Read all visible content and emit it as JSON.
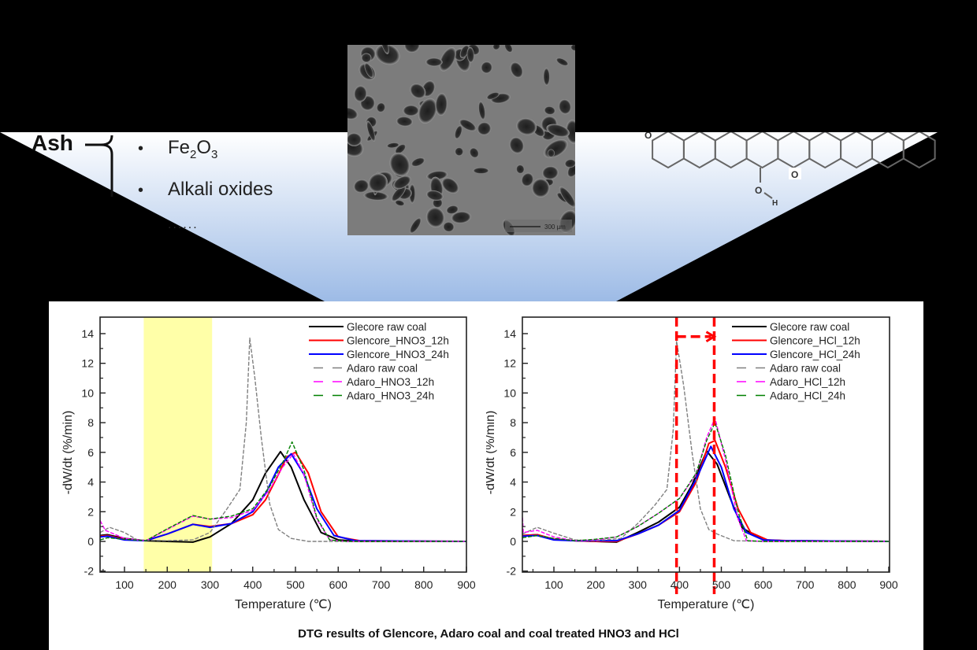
{
  "top_section": {
    "ash_label": "Ash",
    "ash_items": [
      "Fe2O3",
      "Alkali oxides",
      "......"
    ],
    "sem_image": {
      "alt": "porous char SEM micrograph",
      "scale_bar": "300 µm"
    },
    "molecule": {
      "alt": "coal macromolecular structure",
      "atom_labels": [
        "O",
        "O",
        "H"
      ]
    },
    "gradient_colors": [
      "#ffffff",
      "#9dbbe6"
    ]
  },
  "caption": "DTG results of Glencore, Adaro coal and coal treated HNO3 and HCl",
  "chart_data": [
    {
      "type": "line",
      "title": "",
      "xlabel": "Temperature (℃)",
      "ylabel": "-dW/dt (%/min)",
      "xlim": [
        43,
        900
      ],
      "ylim": [
        -2,
        15
      ],
      "xticks": [
        100,
        200,
        300,
        400,
        500,
        600,
        700,
        800,
        900
      ],
      "yticks": [
        -2,
        0,
        2,
        4,
        6,
        8,
        10,
        12,
        14
      ],
      "legend_position": "upper right",
      "grid": false,
      "annotations": [
        {
          "type": "highlight_band",
          "x_range": [
            145,
            305
          ],
          "color": "#ffff99"
        }
      ],
      "series": [
        {
          "name": "Glecore raw coal",
          "color": "#000000",
          "dash": "solid",
          "x": [
            43,
            60,
            100,
            150,
            200,
            260,
            300,
            350,
            400,
            430,
            465,
            490,
            520,
            560,
            600,
            650,
            900
          ],
          "y": [
            0.4,
            0.45,
            0.2,
            0.05,
            0.0,
            -0.05,
            0.3,
            1.2,
            2.8,
            4.6,
            6.05,
            5.0,
            2.8,
            0.6,
            0.1,
            0.0,
            0.0
          ]
        },
        {
          "name": "Glencore_HNO3_12h",
          "color": "#ff0000",
          "dash": "solid",
          "x": [
            43,
            60,
            100,
            150,
            200,
            260,
            300,
            350,
            400,
            430,
            460,
            480,
            500,
            530,
            560,
            600,
            650,
            900
          ],
          "y": [
            0.35,
            0.4,
            0.15,
            0.05,
            0.5,
            1.15,
            1.0,
            1.2,
            1.8,
            2.8,
            4.5,
            5.7,
            6.0,
            4.6,
            2.0,
            0.3,
            0.05,
            0.0
          ]
        },
        {
          "name": "Glencore_HNO3_24h",
          "color": "#0000ff",
          "dash": "solid",
          "x": [
            43,
            60,
            100,
            150,
            200,
            260,
            300,
            350,
            400,
            430,
            460,
            490,
            520,
            550,
            590,
            640,
            900
          ],
          "y": [
            0.3,
            0.35,
            0.1,
            0.05,
            0.5,
            1.15,
            0.95,
            1.2,
            2.0,
            3.2,
            5.0,
            5.9,
            4.5,
            2.2,
            0.4,
            0.05,
            0.0
          ]
        },
        {
          "name": "Adaro raw coal",
          "color": "#808080",
          "dash": "dashed",
          "x": [
            43,
            65,
            100,
            130,
            200,
            260,
            300,
            340,
            370,
            385,
            393,
            405,
            420,
            440,
            460,
            490,
            530,
            600,
            900
          ],
          "y": [
            0.6,
            0.95,
            0.6,
            0.1,
            0.05,
            0.1,
            0.6,
            2.2,
            3.5,
            8.0,
            13.7,
            11.0,
            7.0,
            2.5,
            0.8,
            0.2,
            0.0,
            0.0,
            0.0
          ]
        },
        {
          "name": "Adaro_HNO3_12h",
          "color": "#ff00ff",
          "dash": "dashed",
          "x": [
            43,
            55,
            100,
            150,
            200,
            260,
            300,
            350,
            400,
            440,
            470,
            495,
            520,
            550,
            580,
            620,
            900
          ],
          "y": [
            1.4,
            0.75,
            0.2,
            0.05,
            0.8,
            1.7,
            1.5,
            1.6,
            2.1,
            3.5,
            5.0,
            5.9,
            4.5,
            1.5,
            0.1,
            0.0,
            0.0
          ]
        },
        {
          "name": "Adaro_HNO3_24h",
          "color": "#008000",
          "dash": "dashed",
          "x": [
            43,
            60,
            100,
            150,
            200,
            260,
            300,
            350,
            400,
            440,
            470,
            492,
            520,
            550,
            580,
            620,
            900
          ],
          "y": [
            0.1,
            0.25,
            0.15,
            0.05,
            0.85,
            1.75,
            1.5,
            1.7,
            2.2,
            3.7,
            5.3,
            6.7,
            4.8,
            1.6,
            0.1,
            0.0,
            0.0
          ]
        }
      ]
    },
    {
      "type": "line",
      "title": "",
      "xlabel": "Temperature (℃)",
      "ylabel": "-dW/dt (%/min)",
      "xlim": [
        25,
        900
      ],
      "ylim": [
        -2,
        15
      ],
      "xticks": [
        100,
        200,
        300,
        400,
        500,
        600,
        700,
        800,
        900
      ],
      "yticks": [
        -2,
        0,
        2,
        4,
        6,
        8,
        10,
        12,
        14
      ],
      "legend_position": "upper right",
      "grid": false,
      "annotations": [
        {
          "type": "vline",
          "x": 393,
          "color": "#ff0000",
          "dash": "dashed"
        },
        {
          "type": "vline",
          "x": 483,
          "color": "#ff0000",
          "dash": "dashed"
        },
        {
          "type": "arrow",
          "from": [
            393,
            13.8
          ],
          "to": [
            483,
            13.8
          ],
          "color": "#ff0000",
          "dash": "dashed"
        }
      ],
      "series": [
        {
          "name": "Glecore raw coal",
          "color": "#000000",
          "dash": "solid",
          "x": [
            25,
            60,
            100,
            150,
            200,
            250,
            300,
            350,
            400,
            430,
            465,
            490,
            520,
            550,
            600,
            650,
            900
          ],
          "y": [
            0.4,
            0.45,
            0.15,
            0.05,
            0.0,
            -0.05,
            0.6,
            1.3,
            2.3,
            3.8,
            6.1,
            5.2,
            3.0,
            0.9,
            0.1,
            0.05,
            0.0
          ]
        },
        {
          "name": "Glencore_HCl_12h",
          "color": "#ff0000",
          "dash": "solid",
          "x": [
            25,
            60,
            100,
            150,
            200,
            250,
            300,
            350,
            400,
            440,
            470,
            485,
            510,
            540,
            570,
            610,
            660,
            900
          ],
          "y": [
            0.4,
            0.45,
            0.15,
            0.05,
            0.0,
            0.0,
            0.5,
            1.1,
            2.0,
            4.0,
            6.6,
            6.8,
            5.0,
            2.2,
            0.6,
            0.1,
            0.05,
            0.0
          ]
        },
        {
          "name": "Glencore_HCl_24h",
          "color": "#0000ff",
          "dash": "solid",
          "x": [
            25,
            60,
            100,
            150,
            200,
            250,
            300,
            350,
            400,
            440,
            475,
            500,
            530,
            560,
            600,
            650,
            900
          ],
          "y": [
            0.35,
            0.4,
            0.1,
            0.05,
            0.05,
            0.05,
            0.5,
            1.1,
            2.1,
            4.2,
            6.4,
            5.0,
            2.2,
            0.6,
            0.1,
            0.05,
            0.0
          ]
        },
        {
          "name": "Adaro raw coal",
          "color": "#808080",
          "dash": "dashed",
          "x": [
            25,
            60,
            100,
            150,
            200,
            260,
            300,
            340,
            370,
            385,
            393,
            410,
            430,
            450,
            470,
            490,
            530,
            600,
            900
          ],
          "y": [
            0.5,
            0.95,
            0.55,
            0.1,
            0.05,
            0.2,
            1.2,
            2.4,
            3.5,
            7.5,
            13.5,
            10.5,
            6.0,
            2.2,
            0.8,
            0.5,
            0.05,
            0.0,
            0.0
          ]
        },
        {
          "name": "Adaro_HCl_12h",
          "color": "#ff00ff",
          "dash": "dashed",
          "x": [
            25,
            27,
            60,
            100,
            150,
            200,
            250,
            300,
            350,
            400,
            440,
            465,
            485,
            510,
            540,
            560,
            600,
            900
          ],
          "y": [
            1.6,
            0.6,
            0.75,
            0.3,
            0.05,
            0.1,
            0.3,
            1.0,
            1.9,
            2.9,
            4.5,
            7.0,
            8.3,
            5.5,
            1.5,
            0.05,
            0.0,
            0.0
          ]
        },
        {
          "name": "Adaro_HCl_24h",
          "color": "#008000",
          "dash": "dashed",
          "x": [
            25,
            60,
            100,
            150,
            200,
            250,
            300,
            350,
            400,
            440,
            465,
            485,
            510,
            540,
            563,
            600,
            900
          ],
          "y": [
            0.25,
            0.4,
            0.2,
            0.05,
            0.15,
            0.3,
            1.0,
            1.9,
            2.9,
            4.6,
            6.8,
            8.0,
            5.8,
            2.0,
            0.05,
            0.0,
            0.0
          ]
        }
      ]
    }
  ]
}
